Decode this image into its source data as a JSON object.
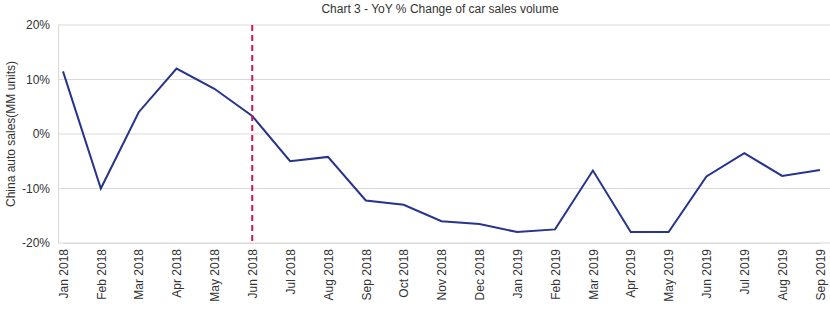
{
  "chart_data": {
    "type": "line",
    "title": "Chart 3 - YoY % Change of car sales volume",
    "y_label": "China auto sales(MM units)",
    "categories": [
      "Jan 2018",
      "Feb 2018",
      "Mar 2018",
      "Apr 2018",
      "May 2018",
      "Jun 2018",
      "Jul 2018",
      "Aug 2018",
      "Sep 2018",
      "Oct 2018",
      "Nov 2018",
      "Dec 2018",
      "Jan 2019",
      "Feb 2019",
      "Mar 2019",
      "Apr 2019",
      "May 2019",
      "Jun 2019",
      "Jul 2019",
      "Aug 2019",
      "Sep 2019"
    ],
    "values": [
      11.5,
      -10,
      4,
      12,
      8.3,
      3.3,
      -5,
      -4.2,
      -12.2,
      -13,
      -16,
      -16.5,
      -18,
      -17.5,
      -6.7,
      -18,
      -18,
      -7.8,
      -3.5,
      -7.7,
      -6.6
    ],
    "color": "#27348b",
    "ylim": [
      -20,
      20
    ],
    "yticks": [
      {
        "value": -20,
        "label": "-20%"
      },
      {
        "value": -10,
        "label": "-10%"
      },
      {
        "value": 0,
        "label": "0%"
      },
      {
        "value": 10,
        "label": "10%"
      },
      {
        "value": 20,
        "label": "20%"
      }
    ],
    "grid": true,
    "vline": {
      "category": "Jun 2018",
      "color": "#c2185b",
      "line_style": "dashed"
    }
  }
}
